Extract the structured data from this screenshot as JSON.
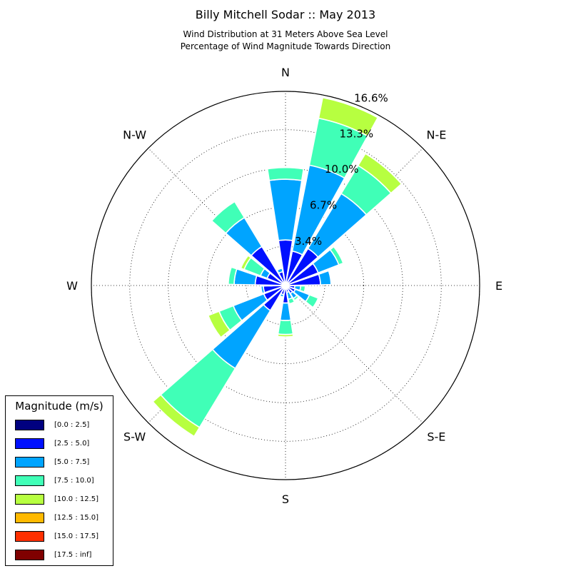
{
  "chart_data": {
    "type": "windrose",
    "title": "Billy Mitchell Sodar :: May 2013",
    "subtitle_lines": [
      "Wind Distribution at 31 Meters Above Sea Level",
      "Percentage of Wind Magnitude Towards Direction"
    ],
    "direction_labels": {
      "N": "N",
      "NE": "N-E",
      "E": "E",
      "SE": "S-E",
      "S": "S",
      "SW": "S-W",
      "W": "W",
      "NW": "N-W"
    },
    "ring_labels": [
      "3.4%",
      "6.7%",
      "10.0%",
      "13.3%",
      "16.6%"
    ],
    "ring_values": [
      3.36,
      6.7,
      10.04,
      13.34,
      16.62
    ],
    "rmax": 16.62,
    "bin_width_deg": 20,
    "bins": [
      {
        "label": "[0.0 : 2.5]",
        "color": "#00007f"
      },
      {
        "label": "[2.5 : 5.0]",
        "color": "#0010ff"
      },
      {
        "label": "[5.0 : 7.5]",
        "color": "#00a4ff"
      },
      {
        "label": "[7.5 : 10.0]",
        "color": "#40ffb7"
      },
      {
        "label": "[10.0 : 12.5]",
        "color": "#b7ff40"
      },
      {
        "label": "[12.5 : 15.0]",
        "color": "#ffb900"
      },
      {
        "label": "[15.0 : 17.5]",
        "color": "#ff3000"
      },
      {
        "label": "[17.5 : inf]",
        "color": "#7f0000"
      }
    ],
    "directions": [
      {
        "deg": 0,
        "values": [
          0.1,
          3.9,
          9.1,
          10.1,
          0,
          0,
          0,
          0
        ]
      },
      {
        "deg": 20,
        "values": [
          0.2,
          3.0,
          10.5,
          14.6,
          16.4,
          0,
          0,
          0
        ]
      },
      {
        "deg": 40,
        "values": [
          0.2,
          3.7,
          9.2,
          12.0,
          13.2,
          0,
          0,
          0
        ]
      },
      {
        "deg": 60,
        "values": [
          0.2,
          3.0,
          4.9,
          5.3,
          0,
          0,
          0,
          0
        ]
      },
      {
        "deg": 80,
        "values": [
          0.2,
          3.0,
          3.9,
          0,
          0,
          0,
          0,
          0
        ]
      },
      {
        "deg": 100,
        "values": [
          0.1,
          0.8,
          1.3,
          1.7,
          0,
          0,
          0,
          0
        ]
      },
      {
        "deg": 120,
        "values": [
          0.1,
          0.9,
          2.2,
          3.0,
          0,
          0,
          0,
          0
        ]
      },
      {
        "deg": 140,
        "values": [
          0.2,
          0.8,
          1.3,
          1.5,
          0,
          0,
          0,
          0
        ]
      },
      {
        "deg": 160,
        "values": [
          0.1,
          0.6,
          1.2,
          1.6,
          0,
          0,
          0,
          0
        ]
      },
      {
        "deg": 180,
        "values": [
          0.2,
          1.5,
          3.0,
          4.2,
          4.4,
          0,
          0,
          0
        ]
      },
      {
        "deg": 200,
        "values": [
          0.2,
          0.8,
          1.0,
          0,
          0,
          0,
          0,
          0
        ]
      },
      {
        "deg": 220,
        "values": [
          0.2,
          2.5,
          8.3,
          14.2,
          15.1,
          0,
          0,
          0
        ]
      },
      {
        "deg": 240,
        "values": [
          0.2,
          2.0,
          4.8,
          6.1,
          7.1,
          0,
          0,
          0
        ]
      },
      {
        "deg": 260,
        "values": [
          0.2,
          1.9,
          2.1,
          0,
          0,
          0,
          0,
          0
        ]
      },
      {
        "deg": 280,
        "values": [
          0.2,
          2.6,
          4.4,
          4.9,
          0,
          0,
          0,
          0
        ]
      },
      {
        "deg": 300,
        "values": [
          0.1,
          1.7,
          2.3,
          3.8,
          4.1,
          0,
          0,
          0
        ]
      },
      {
        "deg": 320,
        "values": [
          0.1,
          3.9,
          6.8,
          8.4,
          0,
          0,
          0,
          0
        ]
      },
      {
        "deg": 340,
        "values": [
          0.2,
          1.2,
          1.5,
          0,
          0,
          0,
          0,
          0
        ]
      }
    ]
  },
  "legend": {
    "title": "Magnitude (m/s)"
  }
}
